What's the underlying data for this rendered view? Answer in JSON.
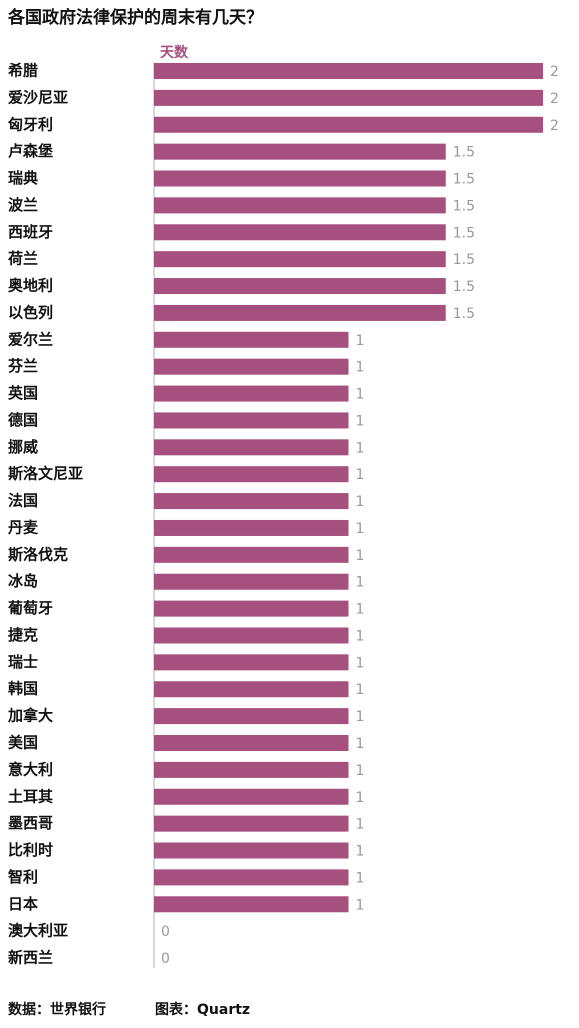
{
  "chart_data": {
    "type": "bar",
    "orientation": "horizontal",
    "title": "各国政府法律保护的周末有几天？",
    "x_label": "天数",
    "categories": [
      "希腊",
      "爱沙尼亚",
      "匈牙利",
      "卢森堡",
      "瑞典",
      "波兰",
      "西班牙",
      "荷兰",
      "奥地利",
      "以色列",
      "爱尔兰",
      "芬兰",
      "英国",
      "德国",
      "挪威",
      "斯洛文尼亚",
      "法国",
      "丹麦",
      "斯洛伐克",
      "冰岛",
      "葡萄牙",
      "捷克",
      "瑞士",
      "韩国",
      "加拿大",
      "美国",
      "意大利",
      "土耳其",
      "墨西哥",
      "比利时",
      "智利",
      "日本",
      "澳大利亚",
      "新西兰"
    ],
    "values": [
      2,
      2,
      2,
      1.5,
      1.5,
      1.5,
      1.5,
      1.5,
      1.5,
      1.5,
      1,
      1,
      1,
      1,
      1,
      1,
      1,
      1,
      1,
      1,
      1,
      1,
      1,
      1,
      1,
      1,
      1,
      1,
      1,
      1,
      1,
      1,
      0,
      0
    ],
    "color": "#a5507f",
    "xlim": [
      0,
      2
    ],
    "source": "数据：世界银行",
    "credit": "图表：Quartz"
  }
}
